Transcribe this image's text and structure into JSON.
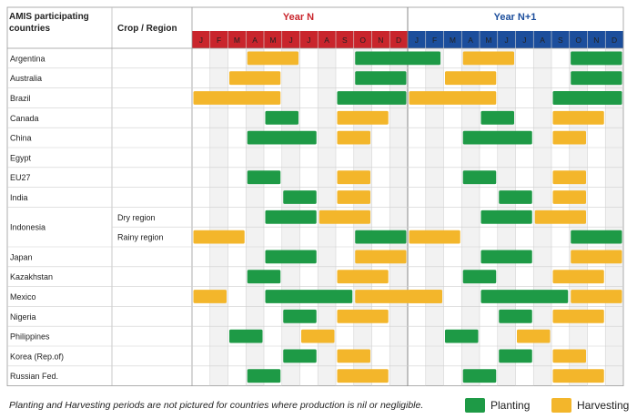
{
  "header": {
    "countries_label_line1": "AMIS participating",
    "countries_label_line2": "countries",
    "crop_region_label": "Crop / Region",
    "year1_label": "Year N",
    "year2_label": "Year N+1"
  },
  "months": [
    "J",
    "F",
    "M",
    "A",
    "M",
    "J",
    "J",
    "A",
    "S",
    "O",
    "N",
    "D"
  ],
  "colors": {
    "planting": "#1e9a46",
    "harvesting": "#f3b62b",
    "year1_band": "#c9252c",
    "year2_band": "#1c4e9c",
    "year1_text": "#c9252c",
    "year2_text": "#1c4e9c"
  },
  "chart_data": {
    "type": "table",
    "legend": {
      "planting_label": "Planting",
      "harvesting_label": "Harvesting",
      "placement": "bottom-right"
    },
    "footnote": "Planting and Harvesting periods are not pictured for countries where production is nil or negligible.",
    "month_index_note_unit": "months of Year N (1-12) and Year N+1 (13-24)",
    "rows": [
      {
        "country": "Argentina",
        "region": "",
        "planting": [
          [
            10,
            13.9
          ],
          [
            22,
            24
          ]
        ],
        "harvesting": [
          [
            4,
            6
          ]
        ]
      },
      {
        "country": "Australia",
        "region": "",
        "planting": [
          [
            10,
            12
          ]
        ],
        "harvesting": [
          [
            3,
            5
          ]
        ]
      },
      {
        "country": "Brazil",
        "region": "",
        "planting": [
          [
            9,
            12
          ],
          [
            21,
            24
          ]
        ],
        "harvesting": [
          [
            1,
            5
          ]
        ]
      },
      {
        "country": "Canada",
        "region": "",
        "planting": [
          [
            5,
            6
          ]
        ],
        "harvesting": [
          [
            9,
            11
          ]
        ]
      },
      {
        "country": "China",
        "region": "",
        "planting": [
          [
            4,
            7
          ]
        ],
        "harvesting": [
          [
            9,
            10
          ]
        ]
      },
      {
        "country": "Egypt",
        "region": "",
        "planting": [],
        "harvesting": []
      },
      {
        "country": "EU27",
        "region": "",
        "planting": [
          [
            4,
            5
          ]
        ],
        "harvesting": [
          [
            9,
            10
          ]
        ]
      },
      {
        "country": "India",
        "region": "",
        "planting": [
          [
            6,
            7
          ]
        ],
        "harvesting": [
          [
            9,
            10
          ]
        ]
      },
      {
        "country": "Indonesia",
        "region": "Dry region",
        "planting": [
          [
            5,
            7
          ]
        ],
        "harvesting": [
          [
            8,
            10
          ]
        ]
      },
      {
        "country": "",
        "region": "Rainy region",
        "planting": [
          [
            10,
            12
          ]
        ],
        "harvesting": [
          [
            1,
            3
          ]
        ]
      },
      {
        "country": "Japan",
        "region": "",
        "planting": [
          [
            5,
            7
          ]
        ],
        "harvesting": [
          [
            10,
            12
          ]
        ]
      },
      {
        "country": "Kazakhstan",
        "region": "",
        "planting": [
          [
            4,
            5
          ]
        ],
        "harvesting": [
          [
            9,
            11
          ]
        ]
      },
      {
        "country": "Mexico",
        "region": "",
        "planting": [
          [
            5,
            9
          ]
        ],
        "harvesting": [
          [
            1,
            2
          ],
          [
            10,
            14
          ]
        ]
      },
      {
        "country": "Nigeria",
        "region": "",
        "planting": [
          [
            6,
            7
          ]
        ],
        "harvesting": [
          [
            9,
            11
          ]
        ]
      },
      {
        "country": "Philippines",
        "region": "",
        "planting": [
          [
            3,
            4
          ]
        ],
        "harvesting": [
          [
            7,
            8
          ]
        ]
      },
      {
        "country": "Korea (Rep.of)",
        "region": "",
        "planting": [
          [
            6,
            7
          ]
        ],
        "harvesting": [
          [
            9,
            10
          ]
        ]
      },
      {
        "country": "Russian Fed.",
        "region": "",
        "planting": [
          [
            4,
            5
          ]
        ],
        "harvesting": [
          [
            9,
            11
          ]
        ]
      }
    ]
  }
}
